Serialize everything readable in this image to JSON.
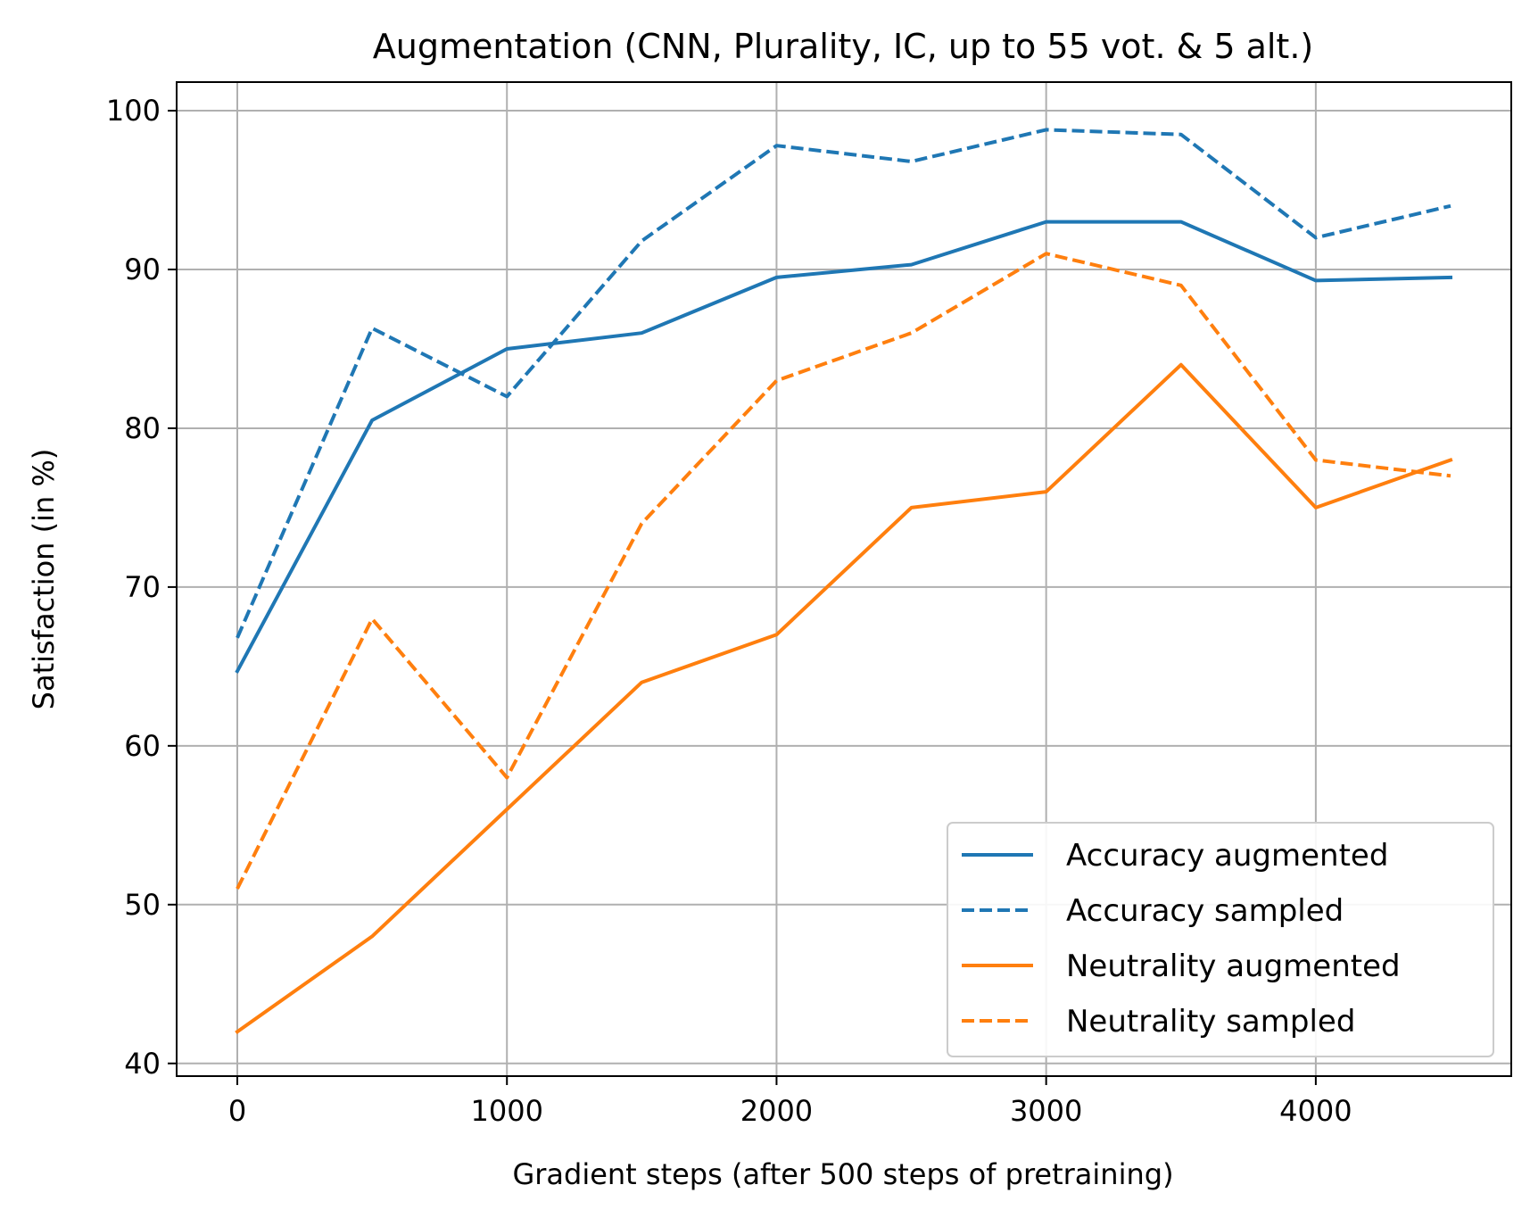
{
  "chart_data": {
    "type": "line",
    "title": "Augmentation (CNN, Plurality, IC, up to 55 vot. & 5 alt.)",
    "xlabel": "Gradient steps (after 500 steps of pretraining)",
    "ylabel": "Satisfaction (in %)",
    "x": [
      0,
      500,
      1000,
      1500,
      2000,
      2500,
      3000,
      3500,
      4000,
      4500
    ],
    "xlim": [
      -225,
      4725
    ],
    "ylim": [
      39.2,
      101.8
    ],
    "xticks": [
      0,
      1000,
      2000,
      3000,
      4000
    ],
    "yticks": [
      40,
      50,
      60,
      70,
      80,
      90,
      100
    ],
    "xtick_labels": [
      "0",
      "1000",
      "2000",
      "3000",
      "4000"
    ],
    "ytick_labels": [
      "40",
      "50",
      "60",
      "70",
      "80",
      "90",
      "100"
    ],
    "grid": true,
    "legend_position": "lower-right",
    "series": [
      {
        "name": "Accuracy augmented",
        "color": "#1f77b4",
        "linestyle": "solid",
        "values": [
          64.7,
          80.5,
          85.0,
          86.0,
          89.5,
          90.3,
          93.0,
          93.0,
          89.3,
          89.5
        ]
      },
      {
        "name": "Accuracy sampled",
        "color": "#1f77b4",
        "linestyle": "dashed",
        "values": [
          66.8,
          86.3,
          82.0,
          91.8,
          97.8,
          96.8,
          98.8,
          98.5,
          92.0,
          94.0
        ]
      },
      {
        "name": "Neutrality augmented",
        "color": "#ff7f0e",
        "linestyle": "solid",
        "values": [
          42.0,
          48.0,
          56.0,
          64.0,
          67.0,
          75.0,
          76.0,
          84.0,
          75.0,
          78.0
        ]
      },
      {
        "name": "Neutrality sampled",
        "color": "#ff7f0e",
        "linestyle": "dashed",
        "values": [
          51.0,
          68.0,
          58.0,
          74.0,
          83.0,
          86.0,
          91.0,
          89.0,
          78.0,
          77.0
        ]
      }
    ]
  }
}
